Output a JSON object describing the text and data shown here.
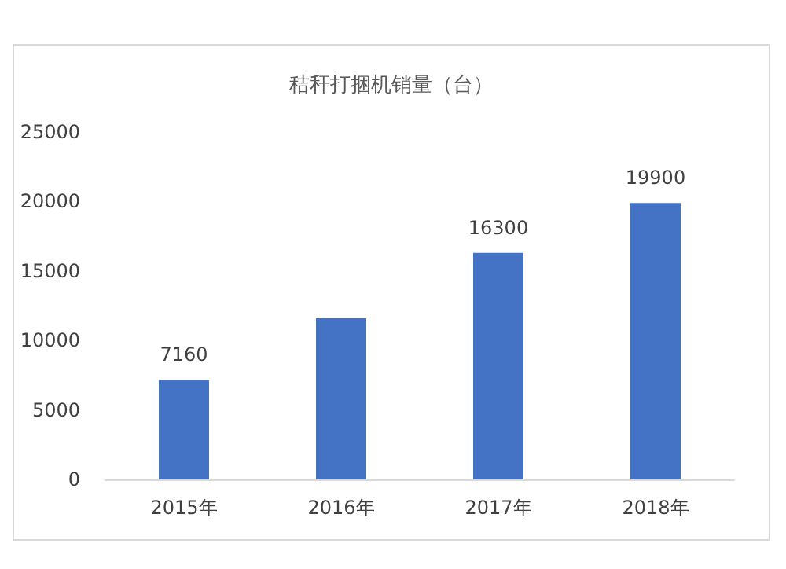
{
  "chart_data": {
    "type": "bar",
    "title": "秸秆打捆机销量（台）",
    "categories": [
      "2015年",
      "2016年",
      "2017年",
      "2018年"
    ],
    "values": [
      7160,
      11600,
      16300,
      19900
    ],
    "value_labels": [
      "7160",
      null,
      "16300",
      "19900"
    ],
    "color": "#4472c4",
    "ylim": [
      0,
      25000
    ],
    "yticks": [
      0,
      5000,
      10000,
      15000,
      20000,
      25000
    ],
    "grid": false
  }
}
